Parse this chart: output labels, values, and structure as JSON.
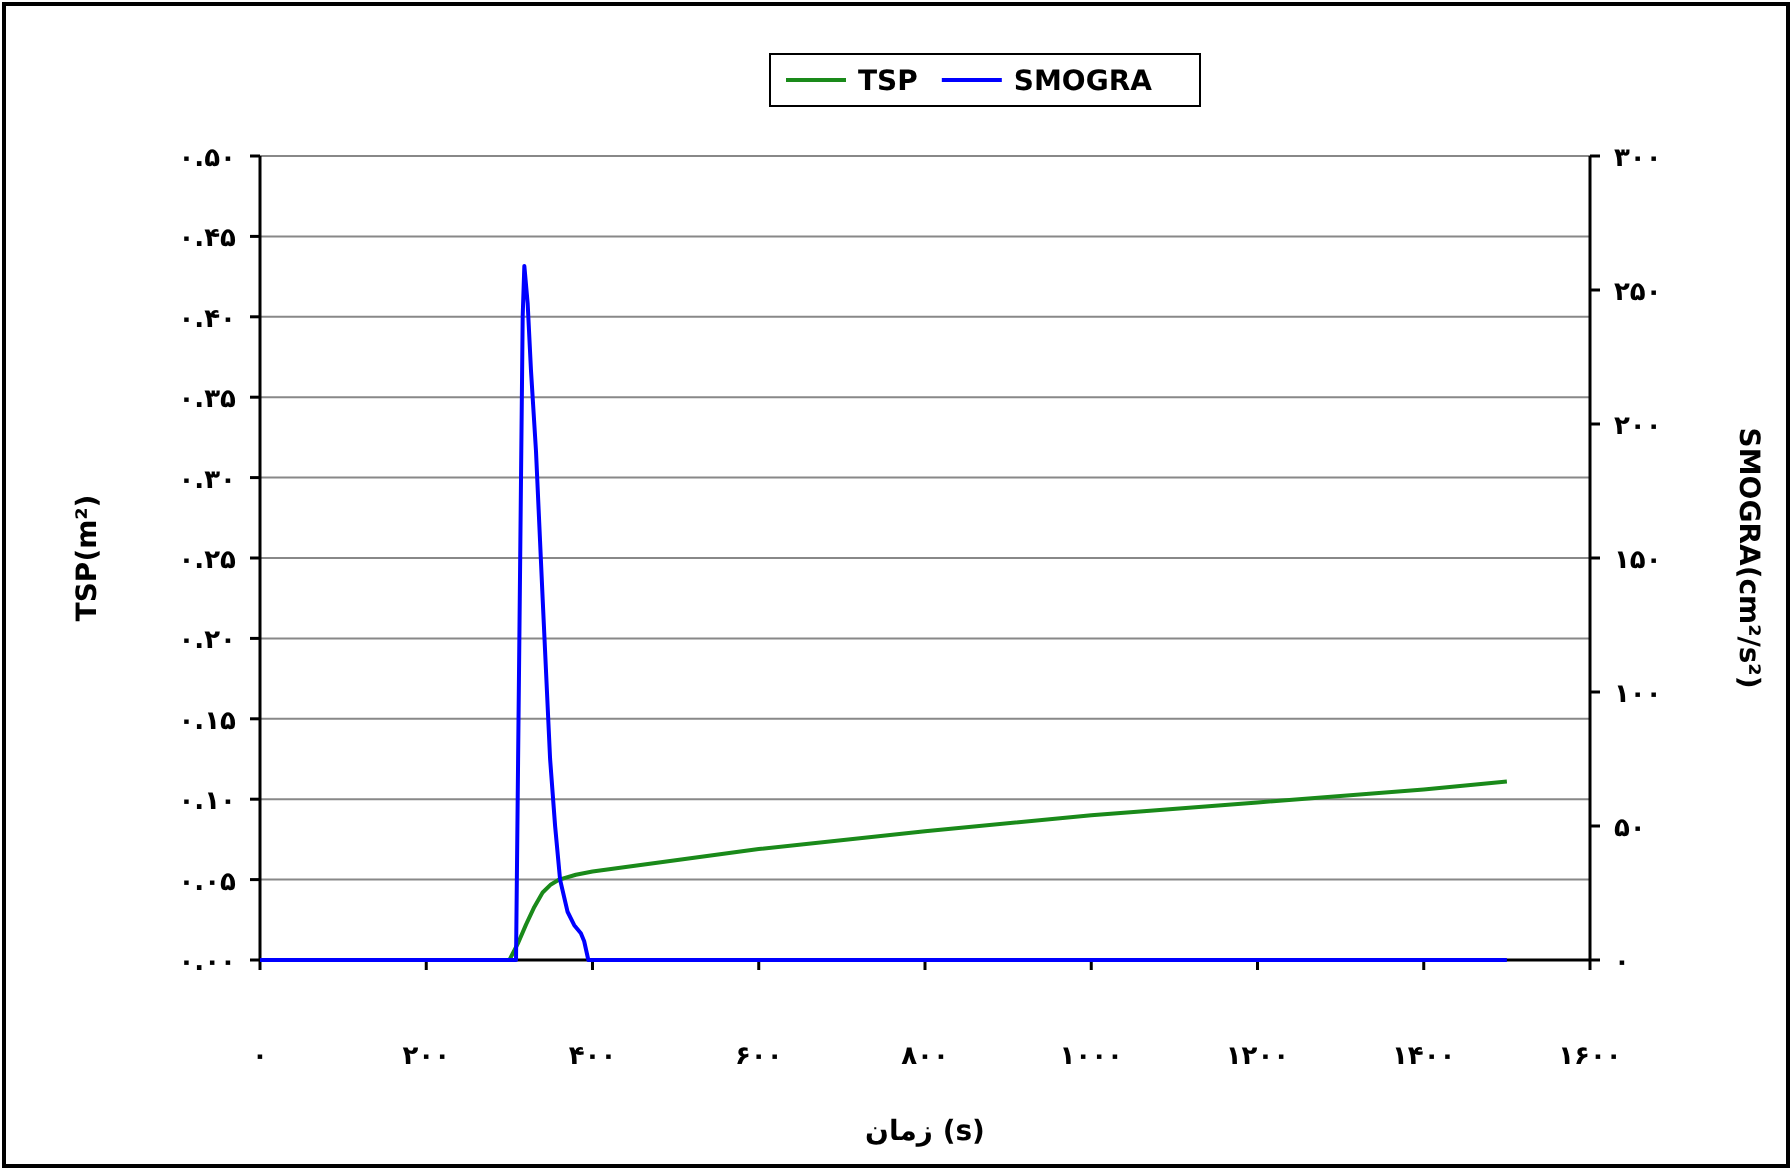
{
  "chart_data": {
    "type": "line",
    "xlabel": "زمان (s)",
    "ylabel": "TSP(m²)",
    "y2label": "SMOGRA(cm²/s²)",
    "legend": "top",
    "grid": "y",
    "xlim": [
      0,
      1600
    ],
    "xticks": [
      {
        "value": 0,
        "label": "۰"
      },
      {
        "value": 200,
        "label": "۲۰۰"
      },
      {
        "value": 400,
        "label": "۴۰۰"
      },
      {
        "value": 600,
        "label": "۶۰۰"
      },
      {
        "value": 800,
        "label": "۸۰۰"
      },
      {
        "value": 1000,
        "label": "۱۰۰۰"
      },
      {
        "value": 1200,
        "label": "۱۲۰۰"
      },
      {
        "value": 1400,
        "label": "۱۴۰۰"
      },
      {
        "value": 1600,
        "label": "۱۶۰۰"
      }
    ],
    "ylim": [
      0,
      0.5
    ],
    "yticks": [
      {
        "value": 0,
        "label": "۰.۰۰"
      },
      {
        "value": 0.05,
        "label": "۰.۰۵"
      },
      {
        "value": 0.1,
        "label": "۰.۱۰"
      },
      {
        "value": 0.15,
        "label": "۰.۱۵"
      },
      {
        "value": 0.2,
        "label": "۰.۲۰"
      },
      {
        "value": 0.25,
        "label": "۰.۲۵"
      },
      {
        "value": 0.3,
        "label": "۰.۳۰"
      },
      {
        "value": 0.35,
        "label": "۰.۳۵"
      },
      {
        "value": 0.4,
        "label": "۰.۴۰"
      },
      {
        "value": 0.45,
        "label": "۰.۴۵"
      },
      {
        "value": 0.5,
        "label": "۰.۵۰"
      }
    ],
    "y2lim": [
      0,
      300
    ],
    "y2ticks": [
      {
        "value": 0,
        "label": "۰"
      },
      {
        "value": 50,
        "label": "۵۰"
      },
      {
        "value": 100,
        "label": "۱۰۰"
      },
      {
        "value": 150,
        "label": "۱۵۰"
      },
      {
        "value": 200,
        "label": "۲۰۰"
      },
      {
        "value": 250,
        "label": "۲۵۰"
      },
      {
        "value": 300,
        "label": "۳۰۰"
      }
    ],
    "series": [
      {
        "name": "TSP",
        "color": "#1a8a1a",
        "x": [
          0,
          300,
          310,
          320,
          330,
          340,
          350,
          360,
          380,
          400,
          600,
          800,
          1000,
          1200,
          1400,
          1500
        ],
        "values": [
          0,
          0,
          0.01,
          0.022,
          0.033,
          0.042,
          0.047,
          0.05,
          0.053,
          0.055,
          0.069,
          0.08,
          0.09,
          0.098,
          0.106,
          0.111
        ]
      },
      {
        "name": "SMOGRA",
        "color": "#0000ff",
        "axis": "y2",
        "x": [
          0,
          300,
          308,
          312,
          316,
          318,
          322,
          326,
          332,
          340,
          349,
          355,
          361,
          370,
          378,
          386,
          390,
          395,
          1500
        ],
        "values": [
          0,
          0,
          0,
          120,
          240,
          259,
          245,
          220,
          190,
          135,
          75,
          50,
          30,
          18,
          13,
          10,
          7,
          0,
          0
        ]
      }
    ]
  }
}
